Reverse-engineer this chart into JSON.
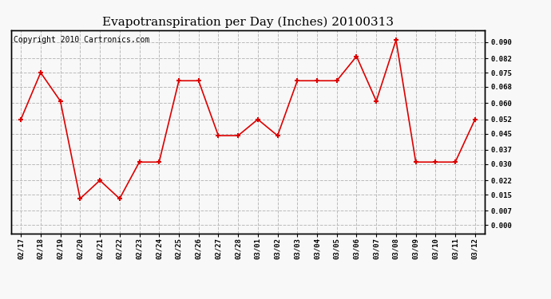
{
  "title": "Evapotranspiration per Day (Inches) 20100313",
  "copyright": "Copyright 2010 Cartronics.com",
  "x_labels": [
    "02/17",
    "02/18",
    "02/19",
    "02/20",
    "02/21",
    "02/22",
    "02/23",
    "02/24",
    "02/25",
    "02/26",
    "02/27",
    "02/28",
    "03/01",
    "03/02",
    "03/03",
    "03/04",
    "03/05",
    "03/06",
    "03/07",
    "03/08",
    "03/09",
    "03/10",
    "03/11",
    "03/12"
  ],
  "y_values": [
    0.052,
    0.075,
    0.061,
    0.013,
    0.022,
    0.013,
    0.031,
    0.031,
    0.071,
    0.071,
    0.044,
    0.044,
    0.052,
    0.044,
    0.071,
    0.071,
    0.071,
    0.083,
    0.061,
    0.091,
    0.031,
    0.031,
    0.031,
    0.052
  ],
  "line_color": "#dd0000",
  "marker_color": "#dd0000",
  "background_color": "#f8f8f8",
  "grid_color": "#bbbbbb",
  "title_fontsize": 11,
  "copyright_fontsize": 7,
  "ytick_values": [
    0.0,
    0.007,
    0.015,
    0.022,
    0.03,
    0.037,
    0.045,
    0.052,
    0.06,
    0.068,
    0.075,
    0.082,
    0.09
  ],
  "ylim": [
    -0.004,
    0.096
  ]
}
